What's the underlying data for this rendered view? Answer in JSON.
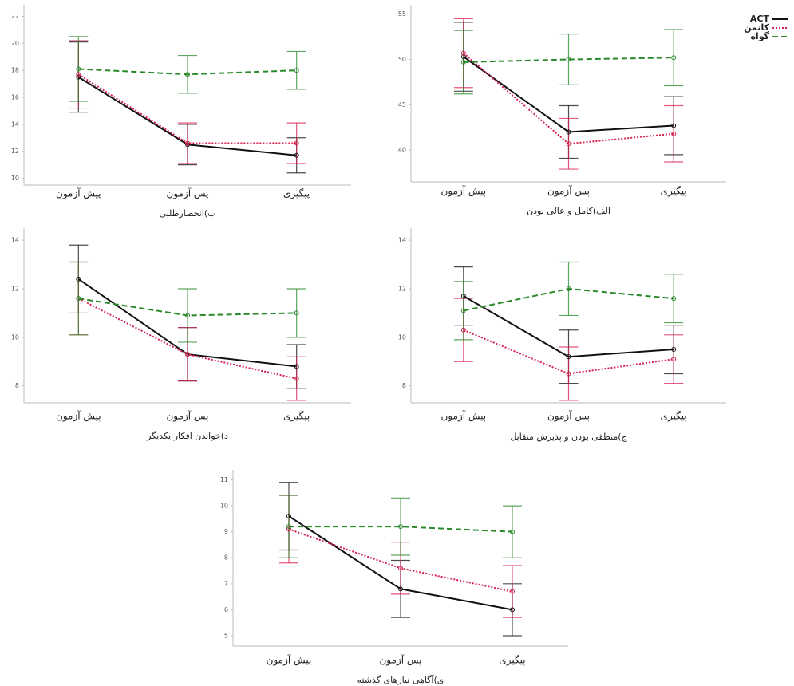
{
  "chart_data": [
    {
      "type": "line",
      "title": "ب)انحصارطلبی",
      "categories": [
        "پیش آزمون",
        "پس آزمون",
        "پیگیری"
      ],
      "ylim": [
        9.5,
        22.5
      ],
      "yticks": [
        10,
        12,
        14,
        16,
        18,
        20,
        22
      ],
      "series": [
        {
          "color": "#111111",
          "dash": "solid",
          "values": [
            17.5,
            12.5,
            11.7
          ],
          "errors": [
            2.6,
            1.5,
            1.3
          ]
        },
        {
          "color": "#d6204e",
          "dash": "dotted",
          "values": [
            17.7,
            12.6,
            12.6
          ],
          "errors": [
            2.5,
            1.5,
            1.5
          ]
        },
        {
          "color": "#2a8a2a",
          "dash": "dashed",
          "values": [
            18.1,
            17.7,
            18.0
          ],
          "errors": [
            2.4,
            1.4,
            1.4
          ]
        }
      ]
    },
    {
      "type": "line",
      "title": "الف)کامل و عالی بودن",
      "categories": [
        "پیش آزمون",
        "پس آزمون",
        "پیگیری"
      ],
      "ylim": [
        36.5,
        55.5
      ],
      "yticks": [
        40,
        45,
        50,
        55
      ],
      "legend": "right",
      "series": [
        {
          "name": "ACT",
          "color": "#111111",
          "dash": "solid",
          "values": [
            50.3,
            42.0,
            42.7
          ],
          "errors": [
            3.8,
            2.9,
            3.2
          ]
        },
        {
          "name": "کانمن",
          "color": "#d6204e",
          "dash": "dotted",
          "values": [
            50.7,
            40.7,
            41.8
          ],
          "errors": [
            3.8,
            2.8,
            3.1
          ]
        },
        {
          "name": "گواه",
          "color": "#2a8a2a",
          "dash": "dashed",
          "values": [
            49.7,
            50.0,
            50.2
          ],
          "errors": [
            3.5,
            2.8,
            3.1
          ]
        }
      ]
    },
    {
      "type": "line",
      "title": "د)خواندن افکار یکدیگر",
      "categories": [
        "پیش آزمون",
        "پس آزمون",
        "پیگیری"
      ],
      "ylim": [
        7.3,
        14.3
      ],
      "yticks": [
        8,
        10,
        12,
        14
      ],
      "series": [
        {
          "color": "#111111",
          "dash": "solid",
          "values": [
            12.4,
            9.3,
            8.8
          ],
          "errors": [
            1.4,
            1.1,
            0.9
          ]
        },
        {
          "color": "#d6204e",
          "dash": "dotted",
          "values": [
            11.6,
            9.3,
            8.3
          ],
          "errors": [
            1.5,
            1.1,
            0.9
          ]
        },
        {
          "color": "#2a8a2a",
          "dash": "dashed",
          "values": [
            11.6,
            10.9,
            11.0
          ],
          "errors": [
            1.5,
            1.1,
            1.0
          ]
        }
      ]
    },
    {
      "type": "line",
      "title": "ج)منطقی بودن و پذیرش متقابل",
      "categories": [
        "پیش آزمون",
        "پس آزمون",
        "پیگیری"
      ],
      "ylim": [
        7.3,
        14.3
      ],
      "yticks": [
        8,
        10,
        12,
        14
      ],
      "series": [
        {
          "color": "#111111",
          "dash": "solid",
          "values": [
            11.7,
            9.2,
            9.5
          ],
          "errors": [
            1.2,
            1.1,
            1.0
          ]
        },
        {
          "color": "#d6204e",
          "dash": "dotted",
          "values": [
            10.3,
            8.5,
            9.1
          ],
          "errors": [
            1.3,
            1.1,
            1.0
          ]
        },
        {
          "color": "#2a8a2a",
          "dash": "dashed",
          "values": [
            11.1,
            12.0,
            11.6
          ],
          "errors": [
            1.2,
            1.1,
            1.0
          ]
        }
      ]
    },
    {
      "type": "line",
      "title": "ی)آگاهی نیازهای گذشته",
      "categories": [
        "پیش آزمون",
        "پس آزمون",
        "پیگیری"
      ],
      "ylim": [
        4.6,
        11.2
      ],
      "yticks": [
        5,
        6,
        7,
        8,
        9,
        10,
        11
      ],
      "series": [
        {
          "color": "#111111",
          "dash": "solid",
          "values": [
            9.6,
            6.8,
            6.0
          ],
          "errors": [
            1.3,
            1.1,
            1.0
          ]
        },
        {
          "color": "#d6204e",
          "dash": "dotted",
          "values": [
            9.1,
            7.6,
            6.7
          ],
          "errors": [
            1.3,
            1.0,
            1.0
          ]
        },
        {
          "color": "#2a8a2a",
          "dash": "dashed",
          "values": [
            9.2,
            9.2,
            9.0
          ],
          "errors": [
            1.2,
            1.1,
            1.0
          ]
        }
      ]
    }
  ]
}
